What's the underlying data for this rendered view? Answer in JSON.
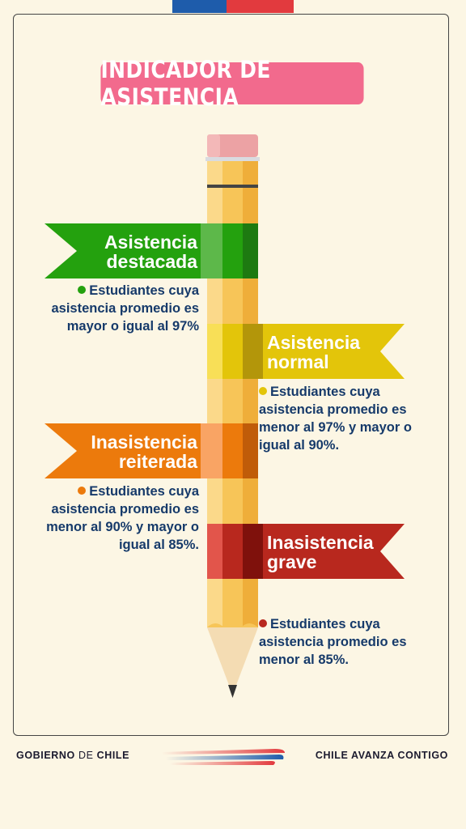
{
  "header": {
    "title": "INDICADOR DE ASISTENCIA"
  },
  "categories": [
    {
      "label_line1": "Asistencia",
      "label_line2": "destacada",
      "color": "#24a10e",
      "desc_prefix": "Estudiantes cuya asistencia promedio es mayor o igual al ",
      "desc_value1": "97%",
      "desc_mid": "",
      "desc_value2": "",
      "desc_suffix": ""
    },
    {
      "label_line1": "Asistencia",
      "label_line2": "normal",
      "color": "#e3c50a",
      "desc_prefix": "Estudiantes cuya asistencia promedio es menor al ",
      "desc_value1": "97%",
      "desc_mid": " y mayor o igual al ",
      "desc_value2": "90%",
      "desc_suffix": "."
    },
    {
      "label_line1": "Inasistencia",
      "label_line2": "reiterada",
      "color": "#ec7a0c",
      "desc_prefix": "Estudiantes cuya asistencia promedio es menor al ",
      "desc_value1": "90%",
      "desc_mid": " y mayor o igual al ",
      "desc_value2": "85%",
      "desc_suffix": "."
    },
    {
      "label_line1": "Inasistencia",
      "label_line2": "grave",
      "color": "#b8281e",
      "desc_prefix": "Estudiantes cuya asistencia promedio es menor al ",
      "desc_value1": "85%",
      "desc_mid": "",
      "desc_value2": "",
      "desc_suffix": "."
    }
  ],
  "footer": {
    "left_bold1": "GOBIERNO",
    "left_light": " DE ",
    "left_bold2": "CHILE",
    "right": "CHILE AVANZA CONTIGO"
  },
  "colors": {
    "background": "#fcf6e4",
    "title_bg": "#f26a8d",
    "text_navy": "#163a6a"
  }
}
